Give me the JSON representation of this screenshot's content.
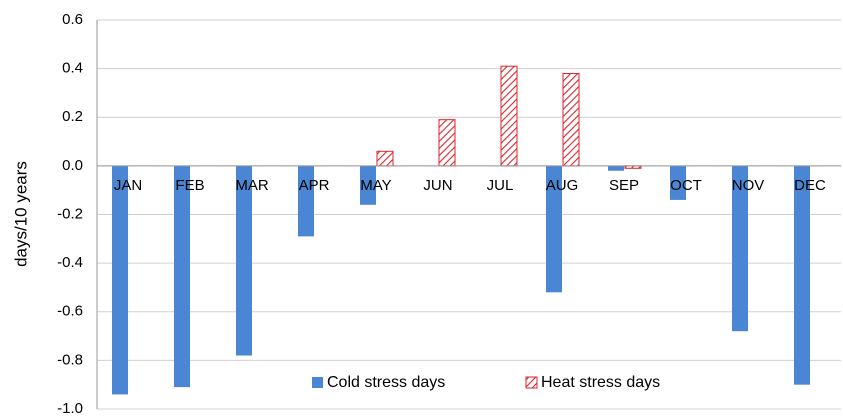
{
  "chart_data": {
    "type": "bar",
    "y_label": "days/10 years",
    "categories": [
      "JAN",
      "FEB",
      "MAR",
      "APR",
      "MAY",
      "JUN",
      "JUL",
      "AUG",
      "SEP",
      "OCT",
      "NOV",
      "DEC"
    ],
    "series": [
      {
        "name": "Cold stress days",
        "color": "#4a86d4",
        "pattern": "solid",
        "values": [
          -0.94,
          -0.91,
          -0.78,
          -0.29,
          -0.16,
          null,
          null,
          -0.52,
          -0.02,
          -0.14,
          -0.68,
          -0.9
        ]
      },
      {
        "name": "Heat stress days",
        "color": "#d9262c",
        "pattern": "hatch",
        "values": [
          null,
          null,
          null,
          null,
          0.06,
          0.19,
          0.41,
          0.38,
          -0.01,
          null,
          null,
          null
        ]
      }
    ],
    "ylim": [
      -1.0,
      0.6
    ],
    "yticks": [
      0.6,
      0.4,
      0.2,
      {
        "value": 0,
        "label": "0.0"
      },
      -0.2,
      -0.4,
      -0.6,
      -0.8,
      {
        "value": -1.0,
        "label": "-1.0"
      }
    ],
    "grid": true,
    "legend": "bottom"
  }
}
